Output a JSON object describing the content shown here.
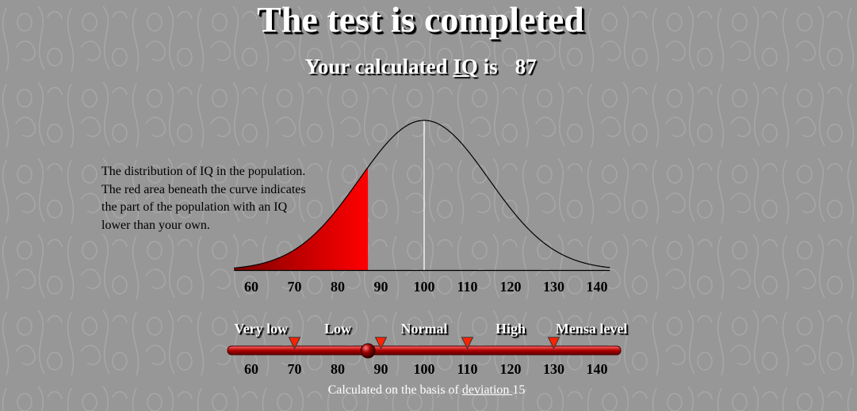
{
  "header": {
    "title": "The test is completed",
    "result_prefix": "Your calculated",
    "iq_link_label": "IQ",
    "result_verb": "is",
    "iq_value": "87"
  },
  "description": {
    "lines": [
      "The distribution of IQ in the population.",
      "The red area beneath the curve indicates",
      "the part of the population with an IQ",
      "lower than your own."
    ]
  },
  "scale": {
    "categories": [
      "Very low",
      "Low",
      "Normal",
      "High",
      "Mensa level"
    ],
    "thresholds": [
      70,
      90,
      110,
      130
    ],
    "marker_value": 87
  },
  "footer": {
    "prefix": "Calculated on the basis of ",
    "deviation_link_label": "deviation ",
    "deviation_value": "15"
  },
  "colors": {
    "background": "#979797",
    "area_fill": "#ff0000",
    "curve": "#000000",
    "mean_line": "#ffffff",
    "track": "#b00000",
    "triangle": "#ff2200",
    "knob": "#8b0000"
  },
  "chart_data": {
    "type": "area",
    "title": "",
    "xlabel": "",
    "ylabel": "",
    "x_ticks": [
      60,
      70,
      80,
      90,
      100,
      110,
      120,
      130,
      140
    ],
    "xlim": [
      56,
      143
    ],
    "distribution": {
      "mean": 100,
      "sd": 15
    },
    "shaded_below": 87,
    "mean_marker": 100
  }
}
